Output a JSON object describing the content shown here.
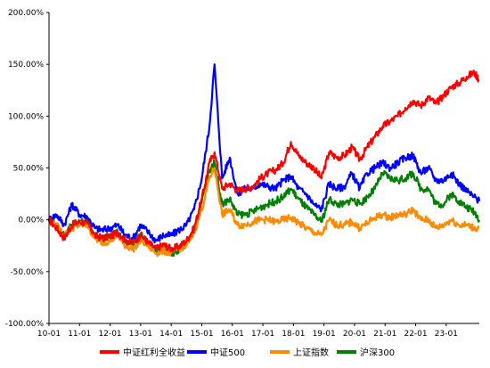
{
  "chart_data": {
    "type": "line",
    "title": "",
    "xlabel": "",
    "ylabel": "",
    "ylim": [
      -100,
      200
    ],
    "yticks": [
      -100,
      -50,
      0,
      50,
      100,
      150,
      200
    ],
    "ytick_labels": [
      "-100.00%",
      "-50.00%",
      "0.00%",
      "50.00%",
      "100.00%",
      "150.00%",
      "200.00%"
    ],
    "x_range": [
      "2010-01",
      "2024-02"
    ],
    "xtick_labels": [
      "10-01",
      "11-01",
      "12-01",
      "13-01",
      "14-01",
      "15-01",
      "16-01",
      "17-01",
      "18-01",
      "19-01",
      "20-01",
      "21-01",
      "22-01",
      "23-01"
    ],
    "xtick_dates": [
      "2010-01",
      "2011-01",
      "2012-01",
      "2013-01",
      "2014-01",
      "2015-01",
      "2016-01",
      "2017-01",
      "2018-01",
      "2019-01",
      "2020-01",
      "2021-01",
      "2022-01",
      "2023-01"
    ],
    "grid": false,
    "legend_position": "bottom",
    "x": [
      "2010-01",
      "2010-04",
      "2010-07",
      "2010-10",
      "2011-01",
      "2011-04",
      "2011-07",
      "2011-10",
      "2012-01",
      "2012-04",
      "2012-07",
      "2012-10",
      "2013-01",
      "2013-04",
      "2013-07",
      "2013-10",
      "2014-01",
      "2014-04",
      "2014-07",
      "2014-10",
      "2015-01",
      "2015-04",
      "2015-06",
      "2015-09",
      "2015-12",
      "2016-03",
      "2016-06",
      "2016-09",
      "2016-12",
      "2017-03",
      "2017-06",
      "2017-09",
      "2017-12",
      "2018-03",
      "2018-06",
      "2018-09",
      "2018-12",
      "2019-03",
      "2019-06",
      "2019-09",
      "2019-12",
      "2020-03",
      "2020-06",
      "2020-09",
      "2020-12",
      "2021-03",
      "2021-06",
      "2021-09",
      "2021-12",
      "2022-03",
      "2022-06",
      "2022-09",
      "2022-12",
      "2023-03",
      "2023-06",
      "2023-09",
      "2023-12",
      "2024-02"
    ],
    "series": [
      {
        "name": "中证红利全收益",
        "color": "#ff0000",
        "values": [
          0,
          -8,
          -18,
          -5,
          -2,
          -3,
          -15,
          -18,
          -16,
          -12,
          -20,
          -22,
          -15,
          -22,
          -28,
          -24,
          -28,
          -26,
          -20,
          -8,
          20,
          55,
          65,
          30,
          35,
          28,
          30,
          32,
          40,
          45,
          48,
          55,
          75,
          62,
          55,
          50,
          40,
          65,
          60,
          62,
          70,
          58,
          70,
          80,
          90,
          95,
          100,
          108,
          115,
          110,
          118,
          112,
          120,
          128,
          132,
          138,
          142,
          135
        ]
      },
      {
        "name": "中证500",
        "color": "#0000ff",
        "values": [
          0,
          5,
          -5,
          15,
          5,
          3,
          -8,
          -10,
          -8,
          -5,
          -15,
          -18,
          -5,
          -12,
          -20,
          -15,
          -15,
          -10,
          -5,
          10,
          40,
          90,
          150,
          40,
          60,
          25,
          30,
          30,
          35,
          32,
          30,
          38,
          42,
          30,
          25,
          15,
          10,
          35,
          30,
          32,
          45,
          30,
          45,
          50,
          55,
          50,
          55,
          60,
          62,
          45,
          50,
          38,
          38,
          45,
          35,
          28,
          22,
          18
        ]
      },
      {
        "name": "上证指数",
        "color": "#ff8c00",
        "values": [
          0,
          -5,
          -15,
          -8,
          -5,
          -5,
          -18,
          -22,
          -20,
          -15,
          -25,
          -28,
          -20,
          -25,
          -32,
          -30,
          -32,
          -28,
          -25,
          -12,
          10,
          40,
          50,
          5,
          10,
          -5,
          -5,
          -2,
          0,
          0,
          -2,
          0,
          2,
          -3,
          -8,
          -12,
          -15,
          0,
          -5,
          -5,
          -2,
          -8,
          -3,
          2,
          5,
          2,
          5,
          5,
          10,
          0,
          0,
          -8,
          -5,
          0,
          -5,
          -5,
          -8,
          -8
        ]
      },
      {
        "name": "沪深300",
        "color": "#008000",
        "values": [
          0,
          -5,
          -15,
          -5,
          -2,
          -2,
          -15,
          -18,
          -16,
          -12,
          -22,
          -25,
          -15,
          -22,
          -30,
          -28,
          -32,
          -30,
          -25,
          -10,
          18,
          48,
          55,
          15,
          20,
          5,
          5,
          8,
          12,
          15,
          18,
          22,
          30,
          20,
          12,
          5,
          -2,
          20,
          15,
          15,
          20,
          15,
          22,
          30,
          45,
          40,
          38,
          40,
          45,
          30,
          30,
          15,
          15,
          25,
          18,
          12,
          8,
          0
        ]
      }
    ]
  }
}
